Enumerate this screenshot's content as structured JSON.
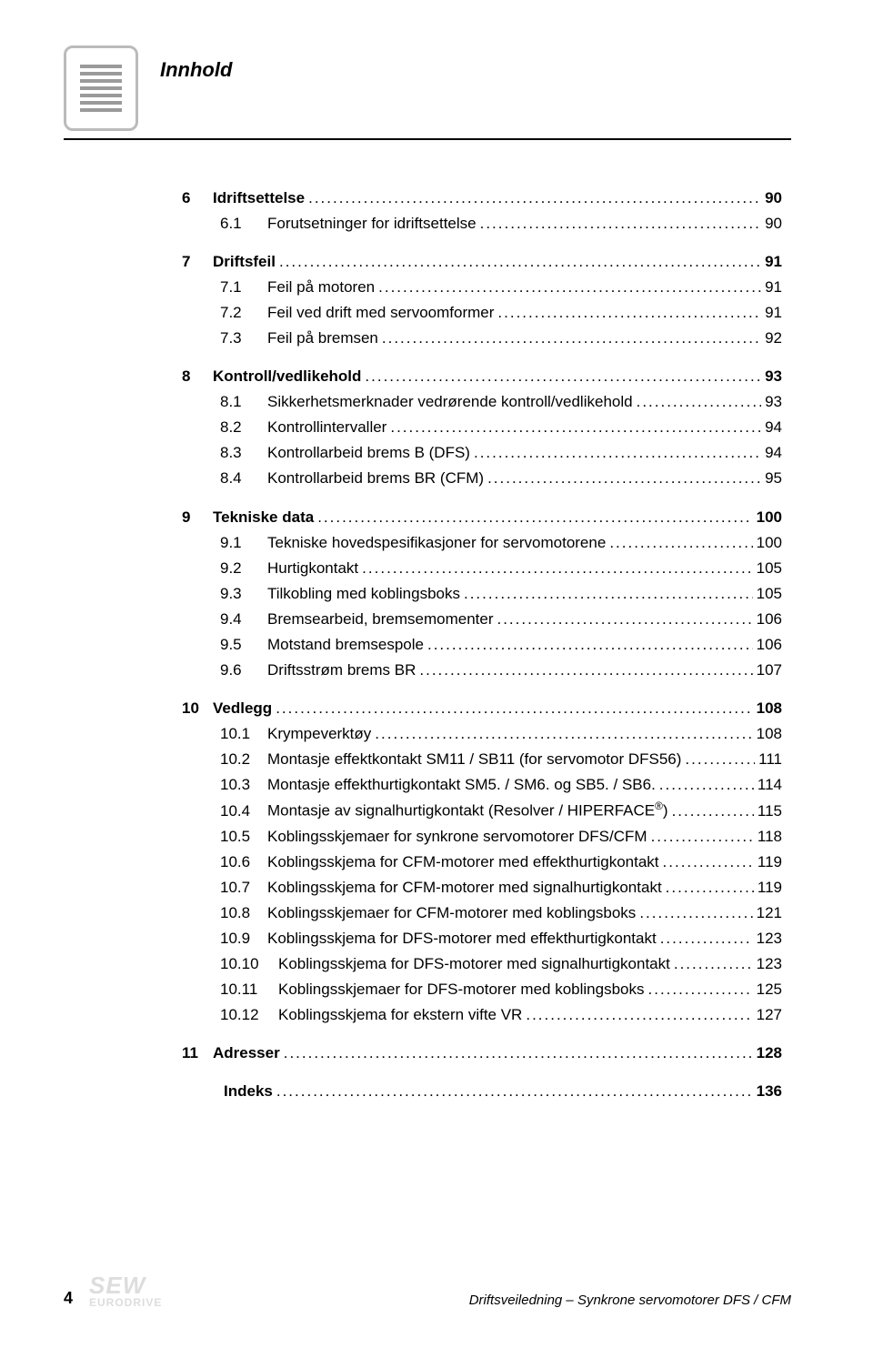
{
  "header_title": "Innhold",
  "footer": {
    "page_number": "4",
    "brand_top": "SEW",
    "brand_bottom": "EURODRIVE",
    "doc_title": "Driftsveiledning – Synkrone servomotorer DFS / CFM"
  },
  "sections": [
    {
      "num": "6",
      "label": "Idriftsettelse",
      "page": "90",
      "bold": true
    },
    {
      "num": "6.1",
      "label": "Forutsetninger for idriftsettelse",
      "page": "90",
      "sub": true
    },
    {
      "num": "7",
      "label": "Driftsfeil",
      "page": "91",
      "bold": true
    },
    {
      "num": "7.1",
      "label": "Feil på motoren",
      "page": "91",
      "sub": true
    },
    {
      "num": "7.2",
      "label": "Feil ved drift med servoomformer",
      "page": "91",
      "sub": true
    },
    {
      "num": "7.3",
      "label": "Feil på bremsen",
      "page": "92",
      "sub": true
    },
    {
      "num": "8",
      "label": "Kontroll/vedlikehold",
      "page": "93",
      "bold": true
    },
    {
      "num": "8.1",
      "label": "Sikkerhetsmerknader vedrørende kontroll/vedlikehold",
      "page": "93",
      "sub": true
    },
    {
      "num": "8.2",
      "label": "Kontrollintervaller",
      "page": "94",
      "sub": true
    },
    {
      "num": "8.3",
      "label": "Kontrollarbeid brems B (DFS)",
      "page": "94",
      "sub": true
    },
    {
      "num": "8.4",
      "label": "Kontrollarbeid brems BR (CFM)",
      "page": "95",
      "sub": true
    },
    {
      "num": "9",
      "label": "Tekniske data",
      "page": "100",
      "bold": true
    },
    {
      "num": "9.1",
      "label": "Tekniske hovedspesifikasjoner for servomotorene",
      "page": "100",
      "sub": true
    },
    {
      "num": "9.2",
      "label": "Hurtigkontakt",
      "page": "105",
      "sub": true
    },
    {
      "num": "9.3",
      "label": "Tilkobling med koblingsboks",
      "page": "105",
      "sub": true
    },
    {
      "num": "9.4",
      "label": "Bremsearbeid, bremsemomenter",
      "page": "106",
      "sub": true
    },
    {
      "num": "9.5",
      "label": "Motstand bremsespole",
      "page": "106",
      "sub": true
    },
    {
      "num": "9.6",
      "label": "Driftsstrøm brems BR",
      "page": "107",
      "sub": true
    },
    {
      "num": "10",
      "label": "Vedlegg",
      "page": "108",
      "bold": true
    },
    {
      "num": "10.1",
      "label": "Krympeverktøy",
      "page": "108",
      "sub": true
    },
    {
      "num": "10.2",
      "label": "Montasje effektkontakt SM11 / SB11 (for servomotor DFS56)",
      "page": "111",
      "sub": true
    },
    {
      "num": "10.3",
      "label": "Montasje effekthurtigkontakt SM5. / SM6. og SB5. / SB6.",
      "page": "114",
      "sub": true
    },
    {
      "num": "10.4",
      "label": "Montasje av signalhurtigkontakt (Resolver / HIPERFACE__SUP__)",
      "page": "115",
      "sub": true
    },
    {
      "num": "10.5",
      "label": "Koblingsskjemaer for synkrone servomotorer DFS/CFM",
      "page": "118",
      "sub": true
    },
    {
      "num": "10.6",
      "label": "Koblingsskjema for CFM-motorer med effekthurtigkontakt",
      "page": "119",
      "sub": true
    },
    {
      "num": "10.7",
      "label": "Koblingsskjema for CFM-motorer med signalhurtigkontakt",
      "page": "119",
      "sub": true
    },
    {
      "num": "10.8",
      "label": "Koblingsskjemaer for CFM-motorer med koblingsboks",
      "page": "121",
      "sub": true
    },
    {
      "num": "10.9",
      "label": "Koblingsskjema for DFS-motorer med effekthurtigkontakt",
      "page": "123",
      "sub": true
    },
    {
      "num": "10.10",
      "label": "Koblingsskjema for DFS-motorer med signalhurtigkontakt",
      "page": "123",
      "sub": true,
      "wide": true
    },
    {
      "num": "10.11",
      "label": "Koblingsskjemaer for DFS-motorer med koblingsboks",
      "page": "125",
      "sub": true,
      "wide": true
    },
    {
      "num": "10.12",
      "label": "Koblingsskjema for ekstern vifte VR",
      "page": "127",
      "sub": true,
      "wide": true
    },
    {
      "num": "11",
      "label": "Adresser",
      "page": "128",
      "bold": true
    },
    {
      "num": "",
      "label": "Indeks",
      "page": "136",
      "bold": true,
      "indent": true
    }
  ],
  "section_groups": [
    [
      0,
      1
    ],
    [
      2,
      3,
      4,
      5
    ],
    [
      6,
      7,
      8,
      9,
      10
    ],
    [
      11,
      12,
      13,
      14,
      15,
      16,
      17
    ],
    [
      18,
      19,
      20,
      21,
      22,
      23,
      24,
      25,
      26,
      27,
      28,
      29,
      30
    ],
    [
      31
    ],
    [
      32
    ]
  ]
}
